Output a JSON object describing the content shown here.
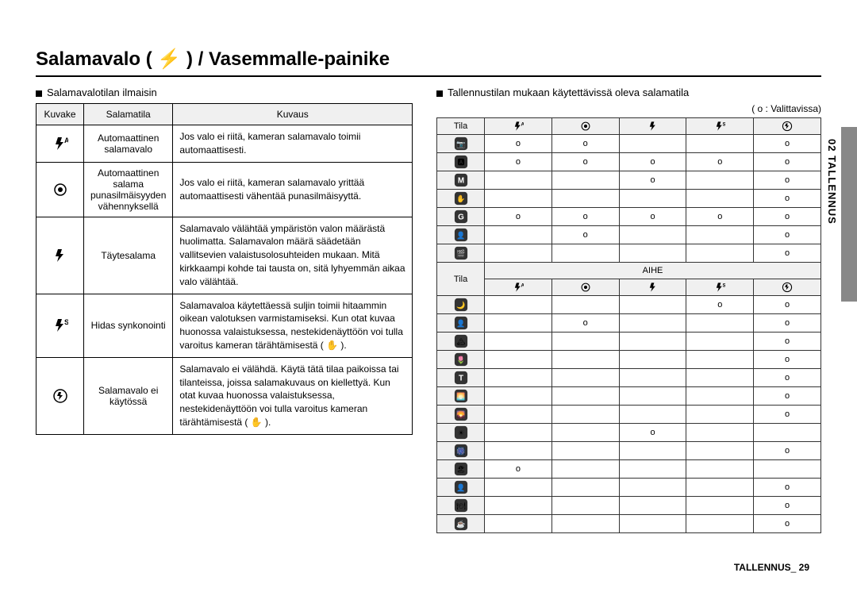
{
  "title": "Salamavalo ( ⚡ ) / Vasemmalle-painike",
  "leftSubhead": "Salamavalotilan ilmaisin",
  "rightSubhead": "Tallennustilan mukaan käytettävissä oleva salamatila",
  "legendNote": "( o : Valittavissa)",
  "sideText": "02 TALLENNUS",
  "footer": {
    "label": "TALLENNUS",
    "page": "29"
  },
  "leftTable": {
    "headers": [
      "Kuvake",
      "Salamatila",
      "Kuvaus"
    ],
    "rows": [
      {
        "icon": "flash-auto",
        "mode": "Automaattinen salamavalo",
        "desc": "Jos valo ei riitä, kameran salamavalo toimii automaattisesti."
      },
      {
        "icon": "red-eye",
        "mode": "Automaattinen salama punasilmäisyyden vähennyksellä",
        "desc": "Jos valo ei riitä, kameran salamavalo yrittää automaattisesti vähentää punasilmäisyyttä."
      },
      {
        "icon": "flash-fill",
        "mode": "Täytesalama",
        "desc": "Salamavalo välähtää ympäristön valon määrästä huolimatta. Salamavalon määrä säädetään vallitsevien valaistusolosuhteiden mukaan. Mitä kirkkaampi kohde tai tausta on, sitä lyhyemmän aikaa valo välähtää."
      },
      {
        "icon": "flash-slow",
        "mode": "Hidas synkonointi",
        "desc": "Salamavaloa käytettäessä suljin toimii hitaammin oikean valotuksen varmistamiseksi. Kun otat kuvaa huonossa valaistuksessa, nestekidenäyttöön voi tulla varoitus kameran tärähtämisestä ( ✋ )."
      },
      {
        "icon": "flash-off",
        "mode": "Salamavalo ei käytössä",
        "desc": "Salamavalo ei välähdä. Käytä tätä tilaa paikoissa tai tilanteissa, joissa salamakuvaus on kiellettyä. Kun otat kuvaa huonossa valaistuksessa, nestekidenäyttöön voi tulla varoitus kameran tärähtämisestä ( ✋ )."
      }
    ]
  },
  "rightTable": {
    "tilaLabel": "Tila",
    "aiheLabel": "AIHE",
    "flashCols": [
      "flash-auto",
      "red-eye",
      "flash-fill",
      "flash-slow",
      "flash-off"
    ],
    "section1Rows": [
      {
        "mode": "camera",
        "o": [
          "o",
          "o",
          "",
          "",
          "o"
        ]
      },
      {
        "mode": "auto",
        "o": [
          "o",
          "o",
          "o",
          "o",
          "o"
        ]
      },
      {
        "mode": "manual",
        "o": [
          "",
          "",
          "o",
          "",
          "o"
        ]
      },
      {
        "mode": "dis",
        "o": [
          "",
          "",
          "",
          "",
          "o"
        ]
      },
      {
        "mode": "guide",
        "o": [
          "o",
          "o",
          "o",
          "o",
          "o"
        ]
      },
      {
        "mode": "portrait-b",
        "o": [
          "",
          "o",
          "",
          "",
          "o"
        ]
      },
      {
        "mode": "movie",
        "o": [
          "",
          "",
          "",
          "",
          "o"
        ]
      }
    ],
    "section2Rows": [
      {
        "mode": "night",
        "o": [
          "",
          "",
          "",
          "o",
          "o"
        ]
      },
      {
        "mode": "portrait",
        "o": [
          "",
          "o",
          "",
          "",
          "o"
        ]
      },
      {
        "mode": "landscape",
        "o": [
          "",
          "",
          "",
          "",
          "o"
        ]
      },
      {
        "mode": "closeup",
        "o": [
          "",
          "",
          "",
          "",
          "o"
        ]
      },
      {
        "mode": "text",
        "o": [
          "",
          "",
          "",
          "",
          "o"
        ]
      },
      {
        "mode": "sunset",
        "o": [
          "",
          "",
          "",
          "",
          "o"
        ]
      },
      {
        "mode": "dawn",
        "o": [
          "",
          "",
          "",
          "",
          "o"
        ]
      },
      {
        "mode": "backlight",
        "o": [
          "",
          "",
          "o",
          "",
          ""
        ]
      },
      {
        "mode": "firework",
        "o": [
          "",
          "",
          "",
          "",
          "o"
        ]
      },
      {
        "mode": "beach",
        "o": [
          "o",
          "",
          "",
          "",
          ""
        ]
      },
      {
        "mode": "selfshot",
        "o": [
          "",
          "",
          "",
          "",
          "o"
        ]
      },
      {
        "mode": "food",
        "o": [
          "",
          "",
          "",
          "",
          "o"
        ]
      },
      {
        "mode": "cafe",
        "o": [
          "",
          "",
          "",
          "",
          "o"
        ]
      }
    ]
  }
}
